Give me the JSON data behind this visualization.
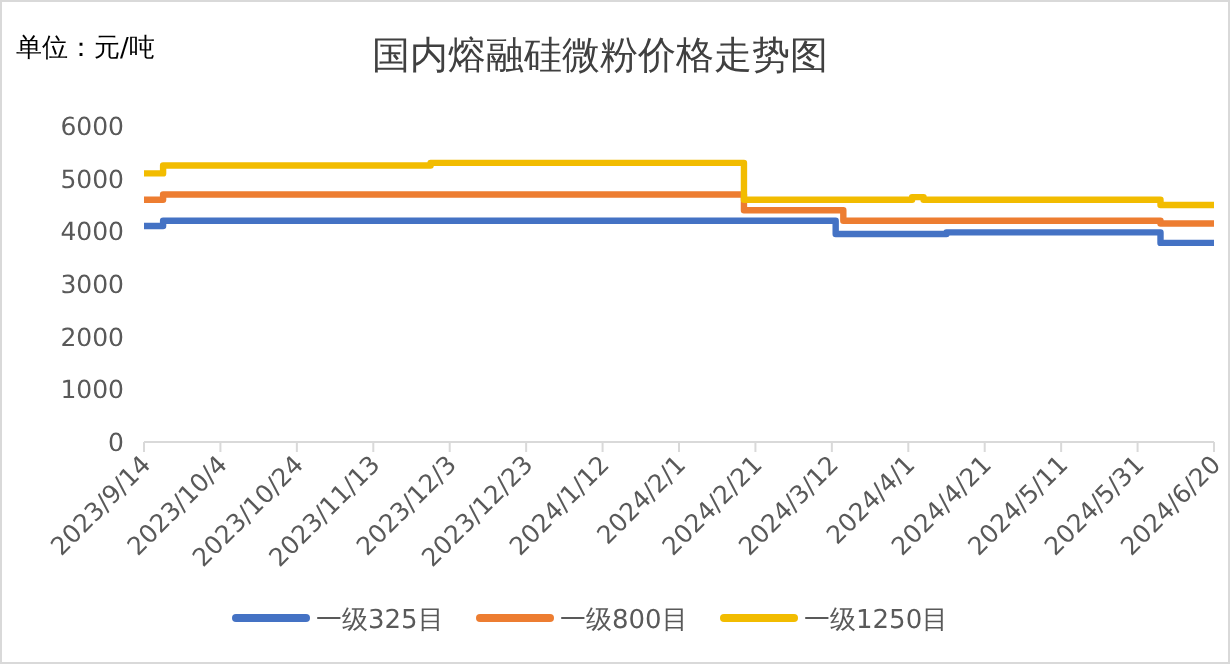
{
  "chart_data": {
    "type": "step",
    "title": "国内熔融硅微粉价格走势图",
    "ylabel": "单位：元/吨",
    "series": [
      {
        "name": "一级325目",
        "color": "#4472c4",
        "x": [
          "2023-09-14",
          "2023-09-19",
          "2024-03-13",
          "2024-04-11",
          "2024-06-06",
          "2024-06-20"
        ],
        "values": [
          4100,
          4200,
          3950,
          3980,
          3780,
          3780
        ]
      },
      {
        "name": "一级800目",
        "color": "#ed7d31",
        "x": [
          "2023-09-14",
          "2023-09-19",
          "2024-02-18",
          "2024-03-15",
          "2024-06-06",
          "2024-06-20"
        ],
        "values": [
          4600,
          4700,
          4400,
          4200,
          4150,
          4150
        ]
      },
      {
        "name": "一级1250目",
        "color": "#f2bc00",
        "x": [
          "2023-09-14",
          "2023-09-19",
          "2023-11-28",
          "2024-02-18",
          "2024-04-02",
          "2024-04-05",
          "2024-06-06",
          "2024-06-20"
        ],
        "values": [
          5100,
          5250,
          5300,
          4600,
          4650,
          4600,
          4500,
          4500
        ]
      }
    ],
    "xlim": [
      "2023-09-14",
      "2024-06-20"
    ],
    "xticks": [
      {
        "value": "2023-09-14",
        "label": "2023/9/14"
      },
      {
        "value": "2023-10-04",
        "label": "2023/10/4"
      },
      {
        "value": "2023-10-24",
        "label": "2023/10/24"
      },
      {
        "value": "2023-11-13",
        "label": "2023/11/13"
      },
      {
        "value": "2023-12-03",
        "label": "2023/12/3"
      },
      {
        "value": "2023-12-23",
        "label": "2023/12/23"
      },
      {
        "value": "2024-01-12",
        "label": "2024/1/12"
      },
      {
        "value": "2024-02-01",
        "label": "2024/2/1"
      },
      {
        "value": "2024-02-21",
        "label": "2024/2/21"
      },
      {
        "value": "2024-03-12",
        "label": "2024/3/12"
      },
      {
        "value": "2024-04-01",
        "label": "2024/4/1"
      },
      {
        "value": "2024-04-21",
        "label": "2024/4/21"
      },
      {
        "value": "2024-05-11",
        "label": "2024/5/11"
      },
      {
        "value": "2024-05-31",
        "label": "2024/5/31"
      },
      {
        "value": "2024-06-20",
        "label": "2024/6/20"
      }
    ],
    "ylim": [
      0,
      6000
    ],
    "yticks": [
      0,
      1000,
      2000,
      3000,
      4000,
      5000,
      6000
    ],
    "grid": false,
    "legend": "bottom"
  }
}
